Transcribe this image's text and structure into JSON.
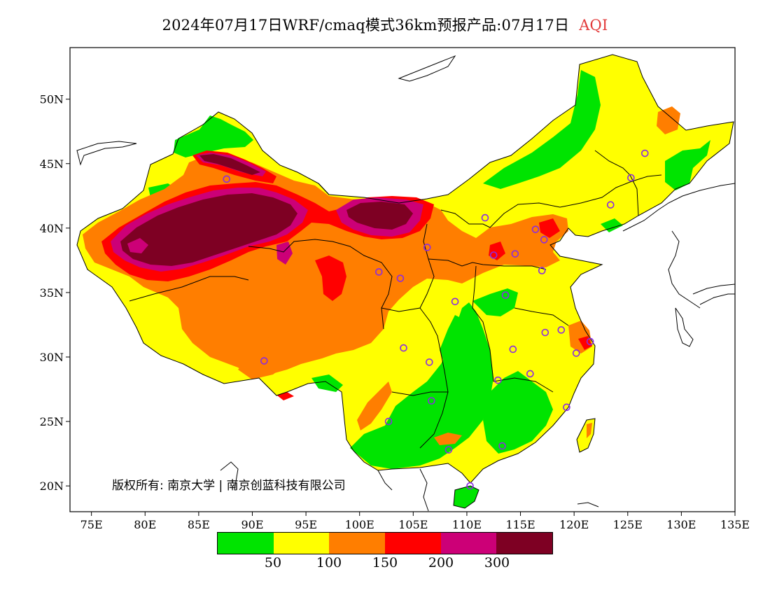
{
  "title": {
    "text": "2024年07月17日WRF/cmaq模式36km预报产品:07月17日",
    "tag": "AQI",
    "tag_color": "#e23a3a"
  },
  "map": {
    "lon_range": [
      73,
      135
    ],
    "lat_range": [
      18,
      54
    ],
    "lon_ticks": [
      "75E",
      "80E",
      "85E",
      "90E",
      "95E",
      "100E",
      "105E",
      "110E",
      "115E",
      "120E",
      "125E",
      "130E",
      "135E"
    ],
    "lat_ticks": [
      "20N",
      "25N",
      "30N",
      "35N",
      "40N",
      "45N",
      "50N"
    ],
    "grid": false,
    "colors": {
      "green": "#00e400",
      "yellow": "#ffff00",
      "orange": "#ff7e00",
      "red": "#ff0000",
      "magenta": "#cc0077",
      "maroon": "#7e0023"
    },
    "city_marker_color": "#8a2be2",
    "city_markers": [
      [
        87.6,
        43.8
      ],
      [
        91.1,
        29.7
      ],
      [
        101.8,
        36.6
      ],
      [
        103.8,
        36.1
      ],
      [
        106.3,
        38.5
      ],
      [
        111.7,
        40.8
      ],
      [
        112.5,
        37.9
      ],
      [
        114.5,
        38.0
      ],
      [
        116.4,
        39.9
      ],
      [
        117.2,
        39.1
      ],
      [
        117.0,
        36.7
      ],
      [
        113.6,
        34.8
      ],
      [
        108.9,
        34.3
      ],
      [
        104.1,
        30.7
      ],
      [
        106.5,
        29.6
      ],
      [
        106.7,
        26.6
      ],
      [
        102.7,
        25.0
      ],
      [
        108.3,
        22.8
      ],
      [
        110.3,
        20.0
      ],
      [
        113.3,
        23.1
      ],
      [
        112.9,
        28.2
      ],
      [
        114.3,
        30.6
      ],
      [
        115.9,
        28.7
      ],
      [
        117.3,
        31.9
      ],
      [
        118.8,
        32.1
      ],
      [
        121.5,
        31.2
      ],
      [
        120.2,
        30.3
      ],
      [
        119.3,
        26.1
      ],
      [
        123.4,
        41.8
      ],
      [
        125.3,
        43.9
      ],
      [
        126.6,
        45.8
      ]
    ]
  },
  "copyright": "版权所有: 南京大学 | 南京创蓝科技有限公司",
  "legend": {
    "colors": [
      "#00e400",
      "#ffff00",
      "#ff7e00",
      "#ff0000",
      "#cc0077",
      "#7e0023"
    ],
    "breaks": [
      "50",
      "100",
      "150",
      "200",
      "300"
    ]
  }
}
